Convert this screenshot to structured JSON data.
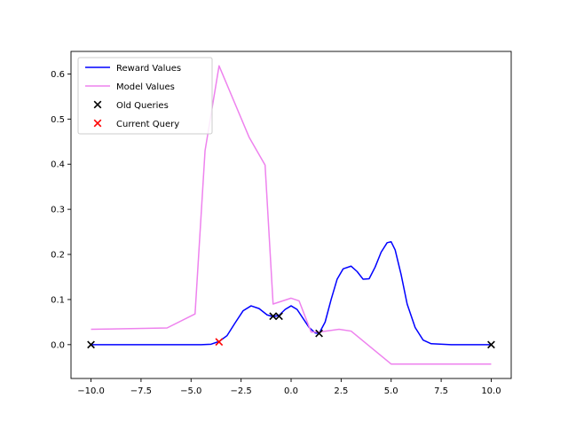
{
  "chart_data": {
    "type": "line",
    "title": "",
    "xlabel": "",
    "ylabel": "",
    "xlim": [
      -11,
      11
    ],
    "ylim": [
      -0.075,
      0.65
    ],
    "x_ticks": [
      -10.0,
      -7.5,
      -5.0,
      -2.5,
      0.0,
      2.5,
      5.0,
      7.5,
      10.0
    ],
    "x_tick_labels": [
      "−10.0",
      "−7.5",
      "−5.0",
      "−2.5",
      "0.0",
      "2.5",
      "5.0",
      "7.5",
      "10.0"
    ],
    "y_ticks": [
      0.0,
      0.1,
      0.2,
      0.3,
      0.4,
      0.5,
      0.6
    ],
    "y_tick_labels": [
      "0.0",
      "0.1",
      "0.2",
      "0.3",
      "0.4",
      "0.5",
      "0.6"
    ],
    "grid": false,
    "legend_position": "top-left",
    "series": [
      {
        "name": "Reward Values",
        "kind": "line",
        "color": "#0000ff",
        "x": [
          -10,
          -9,
          -8,
          -7,
          -6,
          -5,
          -4.5,
          -4,
          -3.6,
          -3.2,
          -2.8,
          -2.4,
          -2.0,
          -1.6,
          -1.2,
          -0.9,
          -0.6,
          -0.3,
          0.0,
          0.3,
          0.6,
          0.9,
          1.2,
          1.4,
          1.7,
          2.0,
          2.3,
          2.6,
          3.0,
          3.3,
          3.6,
          3.9,
          4.2,
          4.5,
          4.8,
          5.0,
          5.2,
          5.5,
          5.8,
          6.2,
          6.6,
          7.0,
          8.0,
          9.0,
          10.0
        ],
        "y": [
          0,
          0,
          0,
          0,
          0,
          0,
          0,
          0.001,
          0.007,
          0.02,
          0.048,
          0.075,
          0.086,
          0.08,
          0.066,
          0.062,
          0.065,
          0.078,
          0.086,
          0.078,
          0.058,
          0.038,
          0.026,
          0.025,
          0.05,
          0.1,
          0.145,
          0.168,
          0.174,
          0.162,
          0.145,
          0.146,
          0.172,
          0.205,
          0.226,
          0.228,
          0.21,
          0.155,
          0.09,
          0.038,
          0.01,
          0.002,
          0,
          0,
          0
        ]
      },
      {
        "name": "Model Values",
        "kind": "line",
        "color": "#ee82ee",
        "x": [
          -10,
          -6.2,
          -4.8,
          -4.3,
          -3.6,
          -2.1,
          -1.3,
          -0.9,
          0.0,
          0.4,
          1.0,
          1.4,
          2.4,
          3.0,
          5.0,
          10.0
        ],
        "y": [
          0.034,
          0.037,
          0.068,
          0.43,
          0.618,
          0.46,
          0.398,
          0.09,
          0.103,
          0.097,
          0.028,
          0.028,
          0.034,
          0.03,
          -0.043,
          -0.043
        ]
      },
      {
        "name": "Old Queries",
        "kind": "scatter",
        "marker": "x",
        "color": "#000000",
        "x": [
          -10,
          -0.9,
          -0.6,
          1.4,
          10
        ],
        "y": [
          0.0,
          0.063,
          0.063,
          0.025,
          0.0
        ]
      },
      {
        "name": "Current Query",
        "kind": "scatter",
        "marker": "x",
        "color": "#ff0000",
        "x": [
          -3.6
        ],
        "y": [
          0.006
        ]
      }
    ]
  }
}
